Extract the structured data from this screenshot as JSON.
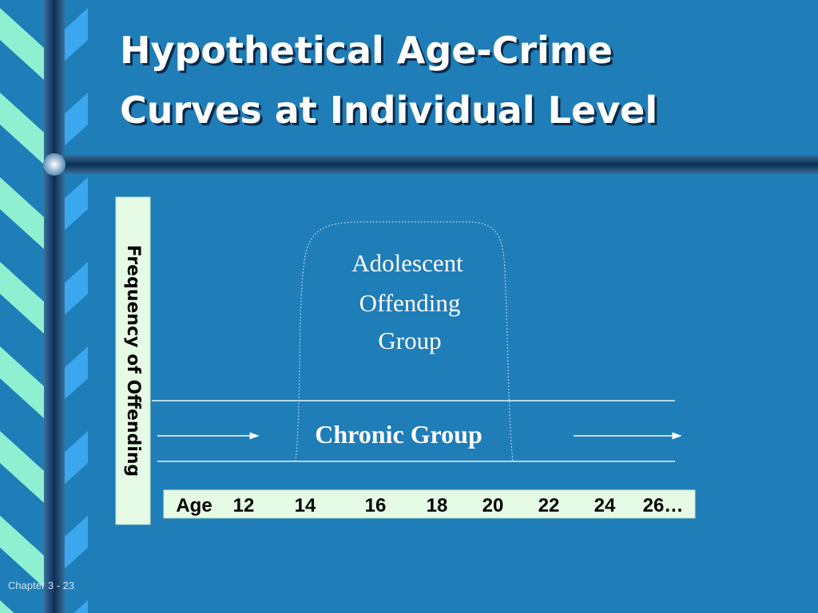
{
  "title": {
    "lines": [
      "Hypothetical Age-Crime",
      "Curves at Individual Level"
    ]
  },
  "y_label": "Frequency of Offending",
  "adolescent_group": {
    "lines": [
      "Adolescent",
      "Offending",
      "Group"
    ]
  },
  "chronic_group": "Chronic Group",
  "age_axis": {
    "label": "Age",
    "ages": [
      "12",
      "14",
      "16",
      "18",
      "20",
      "22",
      "24",
      "26…"
    ]
  },
  "footer": "Chapter 3 - 23"
}
